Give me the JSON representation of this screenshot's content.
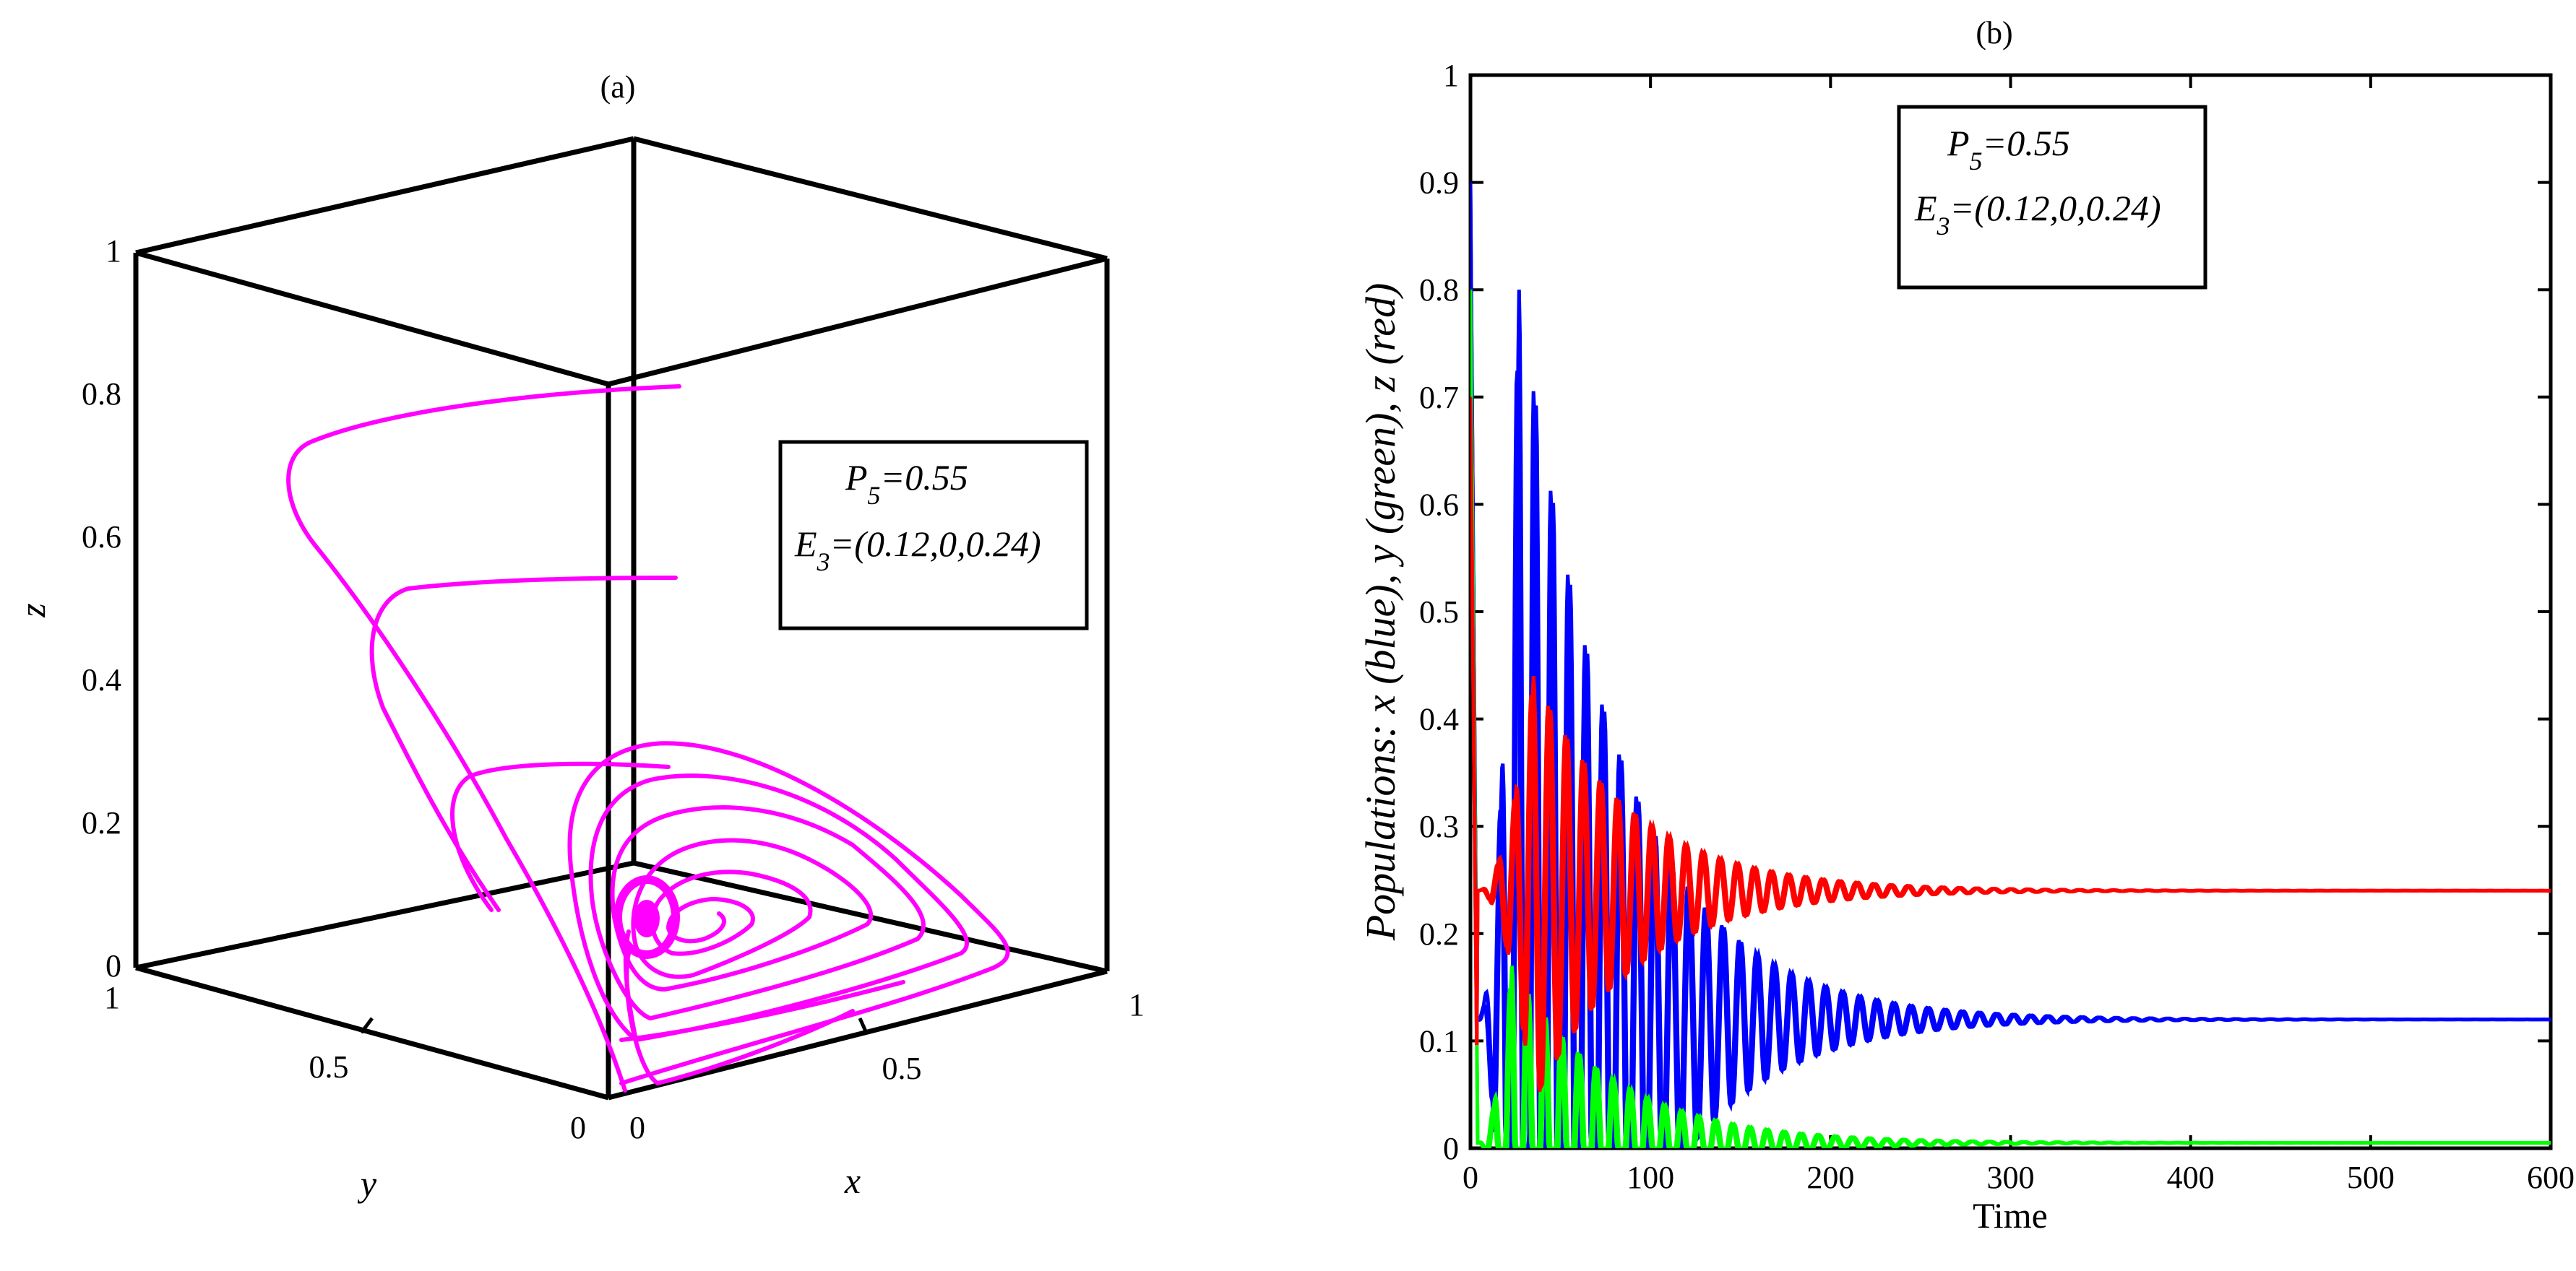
{
  "chart_data": [
    {
      "panel": "(a)",
      "type": "line",
      "projection": "3d",
      "title": "(a)",
      "xlabel": "x",
      "ylabel": "y",
      "zlabel": "z",
      "xlim": [
        0,
        1
      ],
      "ylim": [
        0,
        1
      ],
      "zlim": [
        0,
        1
      ],
      "x_ticks": [
        "0",
        "0.5",
        "1"
      ],
      "y_ticks": [
        "0",
        "0.5",
        "1"
      ],
      "z_ticks": [
        "0",
        "0.2",
        "0.4",
        "0.6",
        "0.8",
        "1"
      ],
      "series": [
        {
          "name": "trajectory",
          "color": "#ff00ff",
          "description_points": "trajectories from several initial conditions spiral into the equilibrium",
          "equilibrium": [
            0.12,
            0.0,
            0.24
          ]
        }
      ],
      "annotation": {
        "param_name": "P",
        "param_sub": "5",
        "param_value": "=0.55",
        "eq_name": "E",
        "eq_sub": "3",
        "eq_value": "=(0.12,0,0.24)"
      }
    },
    {
      "panel": "(b)",
      "type": "line",
      "title": "(b)",
      "xlabel": "Time",
      "ylabel": "Populations: x (blue), y (green), z (red)",
      "xlim": [
        0,
        600
      ],
      "ylim": [
        0,
        1
      ],
      "x_ticks": [
        "0",
        "100",
        "200",
        "300",
        "400",
        "500",
        "600"
      ],
      "y_ticks": [
        "0",
        "0.1",
        "0.2",
        "0.3",
        "0.4",
        "0.5",
        "0.6",
        "0.7",
        "0.8",
        "0.9",
        "1"
      ],
      "series": [
        {
          "name": "x (blue)",
          "color": "#0000ff",
          "initial": 0.9,
          "peak": 0.8,
          "peak_time": 27,
          "equilibrium": 0.12
        },
        {
          "name": "y (green)",
          "color": "#00ff00",
          "initial": 0.8,
          "peak": 0.17,
          "peak_time": 23,
          "equilibrium": 0.005
        },
        {
          "name": "z (red)",
          "color": "#ff0000",
          "initial": 0.7,
          "peak": 0.44,
          "peak_time": 35,
          "equilibrium": 0.24
        }
      ],
      "annotation": {
        "param_name": "P",
        "param_sub": "5",
        "param_value": "=0.55",
        "eq_name": "E",
        "eq_sub": "3",
        "eq_value": "=(0.12,0,0.24)"
      }
    }
  ]
}
